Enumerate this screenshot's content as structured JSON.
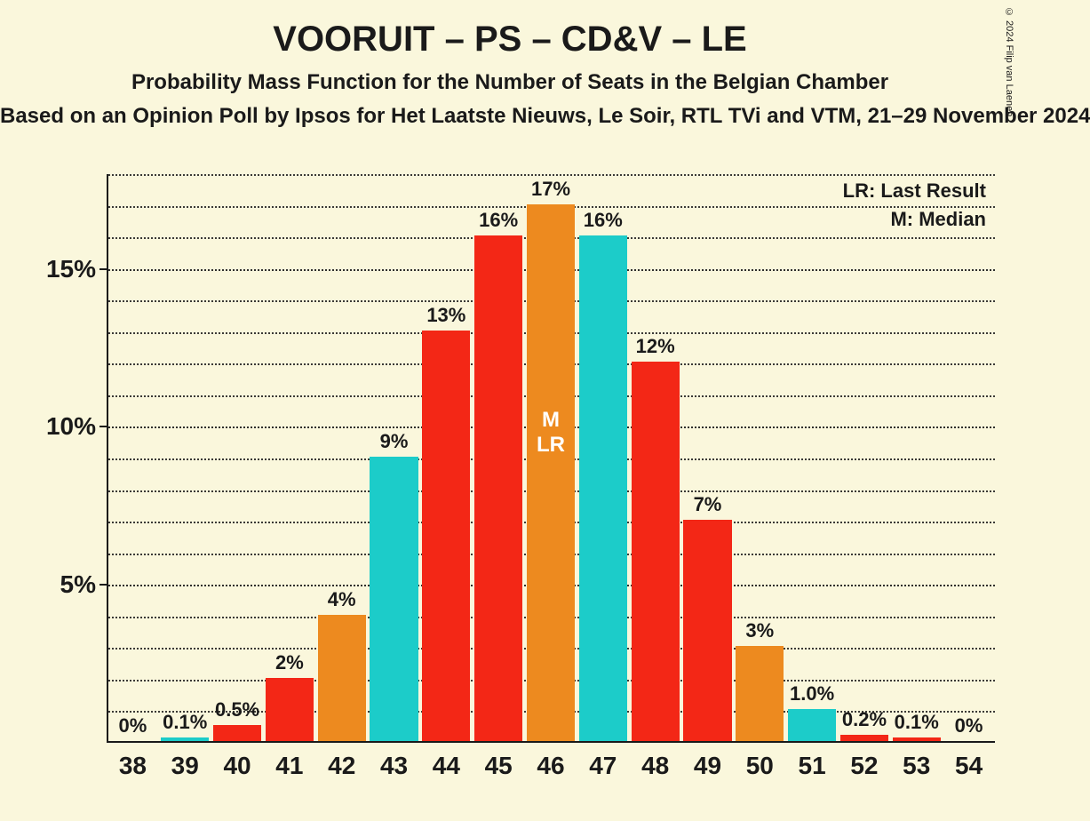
{
  "copyright": "© 2024 Filip van Laenen",
  "title": {
    "text": "VOORUIT – PS – CD&V – LE",
    "fontsize": 40
  },
  "subtitle1": {
    "text": "Probability Mass Function for the Number of Seats in the Belgian Chamber",
    "fontsize": 24
  },
  "subtitle2": {
    "text": "Based on an Opinion Poll by Ipsos for Het Laatste Nieuws, Le Soir, RTL TVi and VTM, 21–29 November 2024",
    "fontsize": 24
  },
  "legend": {
    "lr": "LR: Last Result",
    "m": "M: Median",
    "fontsize": 22
  },
  "chart": {
    "type": "bar",
    "background_color": "#faf7dc",
    "axis_color": "#1a1a1a",
    "grid_color": "#1a1a1a",
    "colors": {
      "red": "#f32716",
      "orange": "#ed8a1f",
      "cyan": "#1cccc9"
    },
    "ylim": [
      0,
      18
    ],
    "yticks": [
      5,
      10,
      15
    ],
    "ytick_labels": [
      "5%",
      "10%",
      "15%"
    ],
    "minor_grid_step": 1,
    "ylabel_fontsize": 28,
    "xlabel_fontsize": 28,
    "barlabel_fontsize": 22,
    "bar_width_ratio": 0.92,
    "categories": [
      "38",
      "39",
      "40",
      "41",
      "42",
      "43",
      "44",
      "45",
      "46",
      "47",
      "48",
      "49",
      "50",
      "51",
      "52",
      "53",
      "54"
    ],
    "values": [
      0,
      0.1,
      0.5,
      2,
      4,
      9,
      13,
      16,
      17,
      16,
      12,
      7,
      3,
      1.0,
      0.2,
      0.1,
      0
    ],
    "value_labels": [
      "0%",
      "0.1%",
      "0.5%",
      "2%",
      "4%",
      "9%",
      "13%",
      "16%",
      "17%",
      "16%",
      "12%",
      "7%",
      "3%",
      "1.0%",
      "0.2%",
      "0.1%",
      "0%"
    ],
    "bar_colors": [
      "red",
      "cyan",
      "red",
      "red",
      "orange",
      "cyan",
      "red",
      "red",
      "orange",
      "cyan",
      "red",
      "red",
      "orange",
      "cyan",
      "red",
      "red",
      "orange"
    ],
    "median_bar_index": 8,
    "median_inner_label": "M\nLR",
    "inner_label_fontsize": 24
  }
}
